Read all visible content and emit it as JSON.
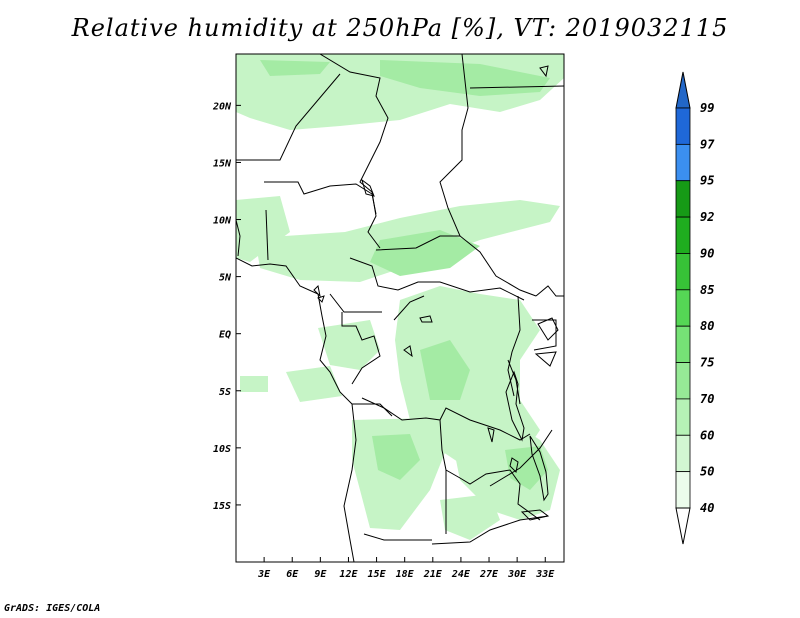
{
  "title": "Relative humidity at 250hPa [%], VT: 2019032115",
  "credit": "GrADS: IGES/COLA",
  "map": {
    "region": "Central Africa",
    "lon_range": [
      0,
      35
    ],
    "lat_range": [
      -20,
      24.5
    ],
    "lon_ticks": [
      "3E",
      "6E",
      "9E",
      "12E",
      "15E",
      "18E",
      "21E",
      "24E",
      "27E",
      "30E",
      "33E"
    ],
    "lon_tick_values": [
      3,
      6,
      9,
      12,
      15,
      18,
      21,
      24,
      27,
      30,
      33
    ],
    "lat_ticks": [
      "20N",
      "15N",
      "10N",
      "5N",
      "EQ",
      "5S",
      "10S",
      "15S"
    ],
    "lat_tick_values": [
      20,
      15,
      10,
      5,
      0,
      -5,
      -10,
      -15
    ]
  },
  "colorbar": {
    "labels": [
      "99",
      "97",
      "95",
      "92",
      "90",
      "85",
      "80",
      "75",
      "70",
      "60",
      "50",
      "40"
    ],
    "colors": [
      "#1f68d8",
      "#3b8ff0",
      "#169a16",
      "#1fad1f",
      "#37c237",
      "#55d655",
      "#76e276",
      "#96ea96",
      "#b6f2b6",
      "#d2f7d2",
      "#ecfcec"
    ],
    "top_color": "#2267c8"
  }
}
